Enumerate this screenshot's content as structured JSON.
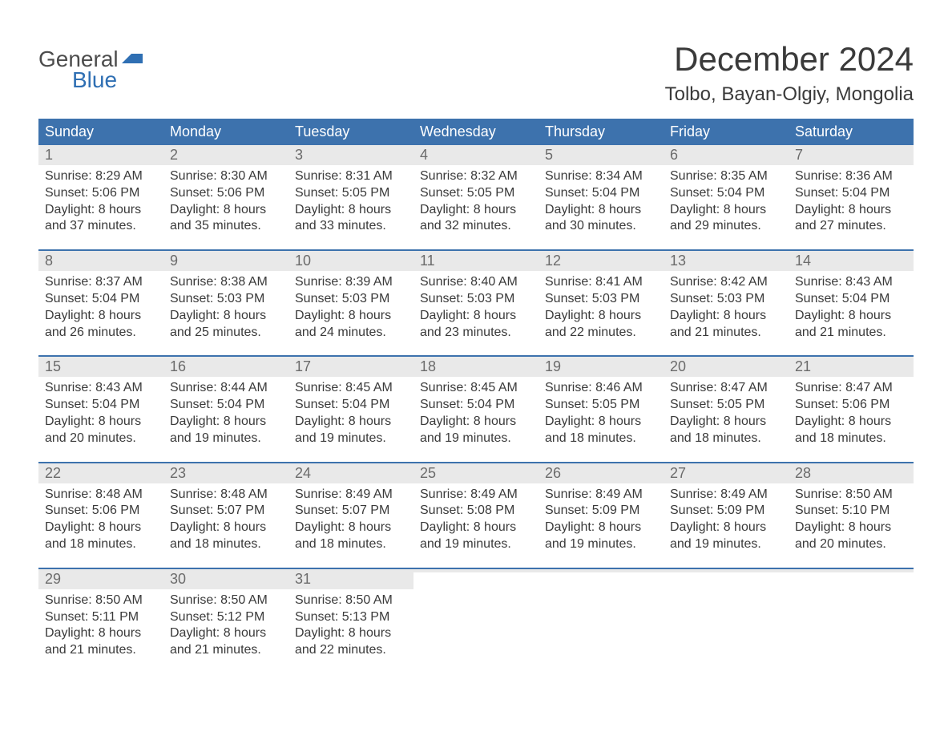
{
  "brand": {
    "word1": "General",
    "word2": "Blue",
    "word1_color": "#4c4c4c",
    "word2_color": "#2f6fb3",
    "flag_color": "#2f6fb3"
  },
  "header": {
    "month_title": "December 2024",
    "location": "Tolbo, Bayan-Olgiy, Mongolia"
  },
  "colors": {
    "header_bg": "#3d72ad",
    "header_text": "#ffffff",
    "week_border": "#3d72ad",
    "daynum_bg": "#e9e9e9",
    "daynum_text": "#6b6b6b",
    "body_text": "#3a3a3a",
    "page_bg": "#ffffff"
  },
  "day_names": [
    "Sunday",
    "Monday",
    "Tuesday",
    "Wednesday",
    "Thursday",
    "Friday",
    "Saturday"
  ],
  "weeks": [
    [
      {
        "num": "1",
        "sunrise": "Sunrise: 8:29 AM",
        "sunset": "Sunset: 5:06 PM",
        "dl1": "Daylight: 8 hours",
        "dl2": "and 37 minutes."
      },
      {
        "num": "2",
        "sunrise": "Sunrise: 8:30 AM",
        "sunset": "Sunset: 5:06 PM",
        "dl1": "Daylight: 8 hours",
        "dl2": "and 35 minutes."
      },
      {
        "num": "3",
        "sunrise": "Sunrise: 8:31 AM",
        "sunset": "Sunset: 5:05 PM",
        "dl1": "Daylight: 8 hours",
        "dl2": "and 33 minutes."
      },
      {
        "num": "4",
        "sunrise": "Sunrise: 8:32 AM",
        "sunset": "Sunset: 5:05 PM",
        "dl1": "Daylight: 8 hours",
        "dl2": "and 32 minutes."
      },
      {
        "num": "5",
        "sunrise": "Sunrise: 8:34 AM",
        "sunset": "Sunset: 5:04 PM",
        "dl1": "Daylight: 8 hours",
        "dl2": "and 30 minutes."
      },
      {
        "num": "6",
        "sunrise": "Sunrise: 8:35 AM",
        "sunset": "Sunset: 5:04 PM",
        "dl1": "Daylight: 8 hours",
        "dl2": "and 29 minutes."
      },
      {
        "num": "7",
        "sunrise": "Sunrise: 8:36 AM",
        "sunset": "Sunset: 5:04 PM",
        "dl1": "Daylight: 8 hours",
        "dl2": "and 27 minutes."
      }
    ],
    [
      {
        "num": "8",
        "sunrise": "Sunrise: 8:37 AM",
        "sunset": "Sunset: 5:04 PM",
        "dl1": "Daylight: 8 hours",
        "dl2": "and 26 minutes."
      },
      {
        "num": "9",
        "sunrise": "Sunrise: 8:38 AM",
        "sunset": "Sunset: 5:03 PM",
        "dl1": "Daylight: 8 hours",
        "dl2": "and 25 minutes."
      },
      {
        "num": "10",
        "sunrise": "Sunrise: 8:39 AM",
        "sunset": "Sunset: 5:03 PM",
        "dl1": "Daylight: 8 hours",
        "dl2": "and 24 minutes."
      },
      {
        "num": "11",
        "sunrise": "Sunrise: 8:40 AM",
        "sunset": "Sunset: 5:03 PM",
        "dl1": "Daylight: 8 hours",
        "dl2": "and 23 minutes."
      },
      {
        "num": "12",
        "sunrise": "Sunrise: 8:41 AM",
        "sunset": "Sunset: 5:03 PM",
        "dl1": "Daylight: 8 hours",
        "dl2": "and 22 minutes."
      },
      {
        "num": "13",
        "sunrise": "Sunrise: 8:42 AM",
        "sunset": "Sunset: 5:03 PM",
        "dl1": "Daylight: 8 hours",
        "dl2": "and 21 minutes."
      },
      {
        "num": "14",
        "sunrise": "Sunrise: 8:43 AM",
        "sunset": "Sunset: 5:04 PM",
        "dl1": "Daylight: 8 hours",
        "dl2": "and 21 minutes."
      }
    ],
    [
      {
        "num": "15",
        "sunrise": "Sunrise: 8:43 AM",
        "sunset": "Sunset: 5:04 PM",
        "dl1": "Daylight: 8 hours",
        "dl2": "and 20 minutes."
      },
      {
        "num": "16",
        "sunrise": "Sunrise: 8:44 AM",
        "sunset": "Sunset: 5:04 PM",
        "dl1": "Daylight: 8 hours",
        "dl2": "and 19 minutes."
      },
      {
        "num": "17",
        "sunrise": "Sunrise: 8:45 AM",
        "sunset": "Sunset: 5:04 PM",
        "dl1": "Daylight: 8 hours",
        "dl2": "and 19 minutes."
      },
      {
        "num": "18",
        "sunrise": "Sunrise: 8:45 AM",
        "sunset": "Sunset: 5:04 PM",
        "dl1": "Daylight: 8 hours",
        "dl2": "and 19 minutes."
      },
      {
        "num": "19",
        "sunrise": "Sunrise: 8:46 AM",
        "sunset": "Sunset: 5:05 PM",
        "dl1": "Daylight: 8 hours",
        "dl2": "and 18 minutes."
      },
      {
        "num": "20",
        "sunrise": "Sunrise: 8:47 AM",
        "sunset": "Sunset: 5:05 PM",
        "dl1": "Daylight: 8 hours",
        "dl2": "and 18 minutes."
      },
      {
        "num": "21",
        "sunrise": "Sunrise: 8:47 AM",
        "sunset": "Sunset: 5:06 PM",
        "dl1": "Daylight: 8 hours",
        "dl2": "and 18 minutes."
      }
    ],
    [
      {
        "num": "22",
        "sunrise": "Sunrise: 8:48 AM",
        "sunset": "Sunset: 5:06 PM",
        "dl1": "Daylight: 8 hours",
        "dl2": "and 18 minutes."
      },
      {
        "num": "23",
        "sunrise": "Sunrise: 8:48 AM",
        "sunset": "Sunset: 5:07 PM",
        "dl1": "Daylight: 8 hours",
        "dl2": "and 18 minutes."
      },
      {
        "num": "24",
        "sunrise": "Sunrise: 8:49 AM",
        "sunset": "Sunset: 5:07 PM",
        "dl1": "Daylight: 8 hours",
        "dl2": "and 18 minutes."
      },
      {
        "num": "25",
        "sunrise": "Sunrise: 8:49 AM",
        "sunset": "Sunset: 5:08 PM",
        "dl1": "Daylight: 8 hours",
        "dl2": "and 19 minutes."
      },
      {
        "num": "26",
        "sunrise": "Sunrise: 8:49 AM",
        "sunset": "Sunset: 5:09 PM",
        "dl1": "Daylight: 8 hours",
        "dl2": "and 19 minutes."
      },
      {
        "num": "27",
        "sunrise": "Sunrise: 8:49 AM",
        "sunset": "Sunset: 5:09 PM",
        "dl1": "Daylight: 8 hours",
        "dl2": "and 19 minutes."
      },
      {
        "num": "28",
        "sunrise": "Sunrise: 8:50 AM",
        "sunset": "Sunset: 5:10 PM",
        "dl1": "Daylight: 8 hours",
        "dl2": "and 20 minutes."
      }
    ],
    [
      {
        "num": "29",
        "sunrise": "Sunrise: 8:50 AM",
        "sunset": "Sunset: 5:11 PM",
        "dl1": "Daylight: 8 hours",
        "dl2": "and 21 minutes."
      },
      {
        "num": "30",
        "sunrise": "Sunrise: 8:50 AM",
        "sunset": "Sunset: 5:12 PM",
        "dl1": "Daylight: 8 hours",
        "dl2": "and 21 minutes."
      },
      {
        "num": "31",
        "sunrise": "Sunrise: 8:50 AM",
        "sunset": "Sunset: 5:13 PM",
        "dl1": "Daylight: 8 hours",
        "dl2": "and 22 minutes."
      },
      {
        "empty": true
      },
      {
        "empty": true
      },
      {
        "empty": true
      },
      {
        "empty": true
      }
    ]
  ]
}
